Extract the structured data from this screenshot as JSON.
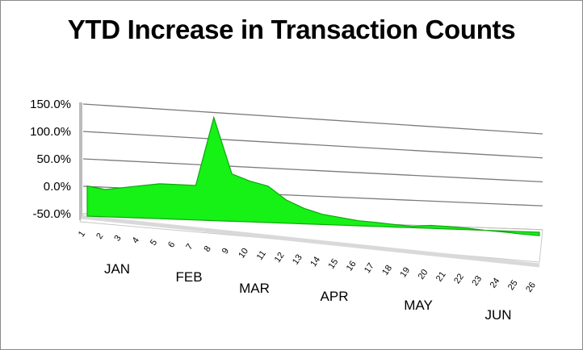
{
  "chart_data": {
    "type": "area",
    "title": "YTD Increase in Transaction Counts",
    "xlabel": "",
    "ylabel": "",
    "x": [
      1,
      2,
      3,
      4,
      5,
      6,
      7,
      8,
      9,
      10,
      11,
      12,
      13,
      14,
      15,
      16,
      17,
      18,
      19,
      20,
      21,
      22,
      23,
      24,
      25,
      26
    ],
    "values": [
      5,
      0,
      5,
      10,
      15,
      15,
      15,
      145,
      40,
      28,
      20,
      -5,
      -20,
      -30,
      -35,
      -40,
      -42,
      -45,
      -47,
      -44,
      -45,
      -47,
      -50,
      -52,
      -55,
      -57
    ],
    "value_unit": "%",
    "ylim": [
      -50,
      150
    ],
    "yticks": [
      "150.0%",
      "100.0%",
      "50.0%",
      "0.0%",
      "-50.0%"
    ],
    "month_labels": [
      "JAN",
      "FEB",
      "MAR",
      "APR",
      "MAY",
      "JUN"
    ],
    "grid": true,
    "legend": "none",
    "colors": {
      "fill": "#16f116",
      "stroke": "#0fa80f",
      "grid": "#7a7a7a",
      "floor": "#d9d9d9"
    }
  }
}
